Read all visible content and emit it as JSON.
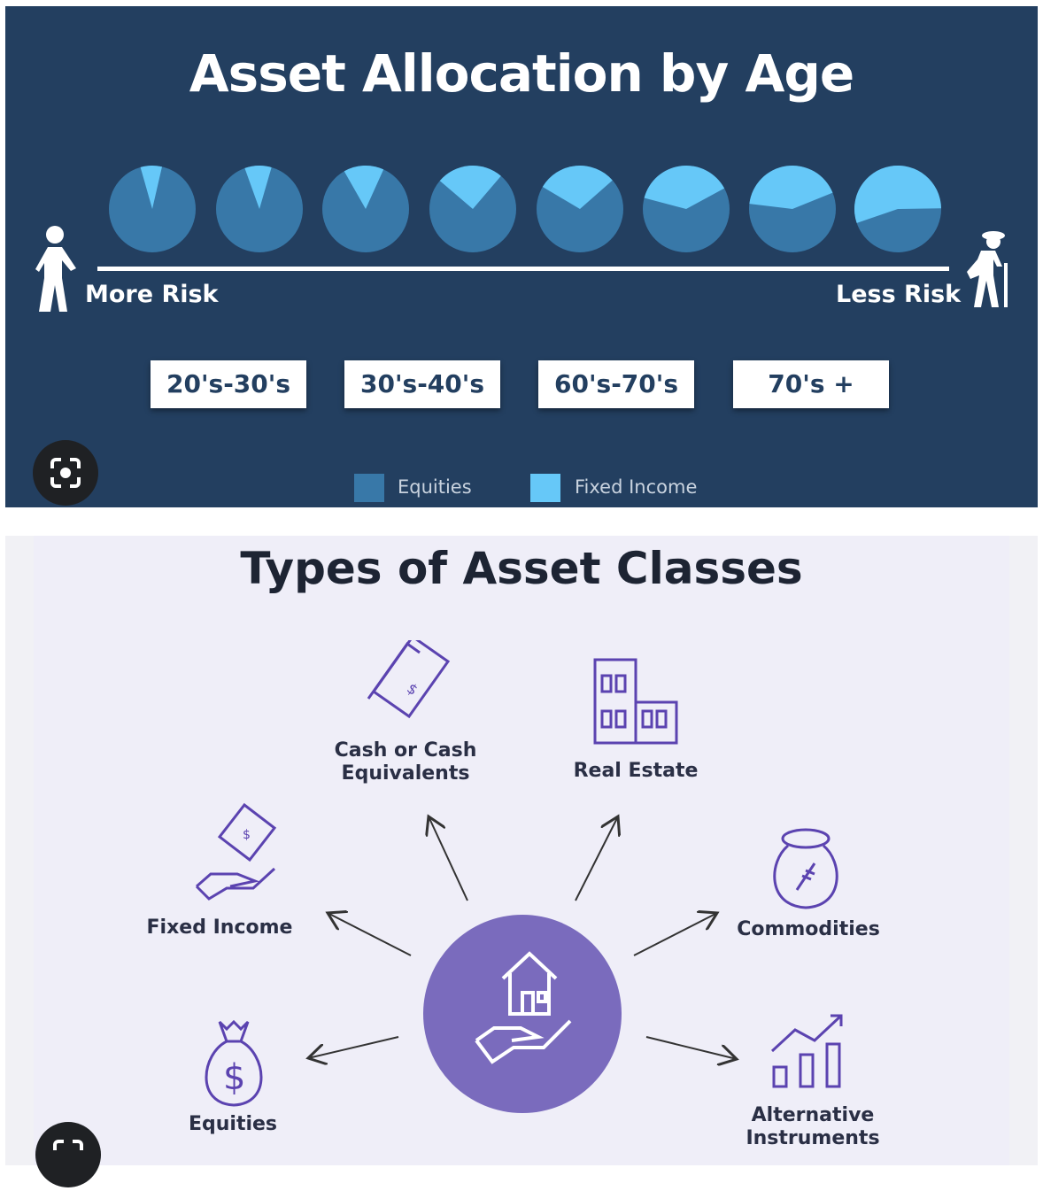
{
  "top": {
    "title": "Asset Allocation by Age",
    "more_risk": "More Risk",
    "less_risk": "Less Risk",
    "age_groups": [
      "20's-30's",
      "30's-40's",
      "60's-70's",
      "70's +"
    ],
    "legend": [
      {
        "label": "Equities",
        "color": "#3878a8"
      },
      {
        "label": "Fixed Income",
        "color": "#66c8f8"
      }
    ],
    "pies_fixed_income_percent": [
      8,
      10,
      15,
      25,
      30,
      38,
      42,
      55
    ],
    "icons": [
      "young-person-icon",
      "elderly-person-icon",
      "lens-search-icon"
    ]
  },
  "bottom": {
    "title": "Types of Asset Classes",
    "accent": "#7a6bbd",
    "classes": [
      "Cash or Cash Equivalents",
      "Real Estate",
      "Fixed Income",
      "Commodities",
      "Equities",
      "Alternative Instruments"
    ],
    "icons": [
      "cash-icon",
      "building-icon",
      "money-in-hand-icon",
      "grain-sack-icon",
      "money-bag-icon",
      "growth-chart-icon",
      "house-in-hand-icon"
    ]
  }
}
